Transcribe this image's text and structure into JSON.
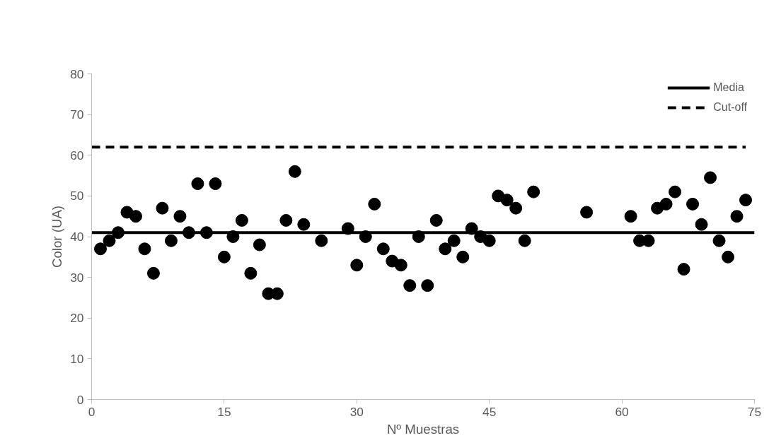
{
  "chart_data": {
    "type": "scatter",
    "xlabel": "Nº Muestras",
    "ylabel": "Color (UA)",
    "xlim": [
      0,
      75
    ],
    "xticks": [
      0,
      15,
      30,
      45,
      60,
      75
    ],
    "ylim": [
      0,
      80
    ],
    "yticks": [
      0,
      10,
      20,
      30,
      40,
      50,
      60,
      70,
      80
    ],
    "grid": false,
    "legend": "top right",
    "series": [
      {
        "marker": "circle",
        "color": "#000000",
        "x": [
          1,
          2,
          3,
          4,
          5,
          6,
          7,
          8,
          9,
          10,
          11,
          12,
          13,
          14,
          15,
          16,
          17,
          18,
          19,
          20,
          21,
          22,
          23,
          24,
          26,
          29,
          30,
          31,
          32,
          33,
          34,
          35,
          36,
          37,
          38,
          39,
          40,
          41,
          42,
          43,
          44,
          45,
          46,
          47,
          48,
          49,
          50,
          56,
          61,
          62,
          63,
          64,
          65,
          66,
          67,
          68,
          69,
          70,
          71,
          72,
          73,
          74
        ],
        "values": [
          37,
          39,
          41,
          46,
          45,
          37,
          31,
          47,
          39,
          45,
          41,
          53,
          41,
          53,
          35,
          40,
          44,
          31,
          38,
          26,
          26,
          44,
          56,
          43,
          39,
          42,
          33,
          40,
          48,
          37,
          34,
          33,
          28,
          40,
          28,
          44,
          37,
          39,
          35,
          42,
          40,
          39,
          50,
          49,
          47,
          39,
          51,
          46,
          45,
          39,
          39,
          47,
          48,
          51,
          32,
          48,
          43,
          54.5,
          39,
          35,
          45,
          49
        ]
      },
      {
        "type": "line",
        "name": "Media",
        "color": "#000000",
        "line_style": "solid",
        "x": [
          0,
          75
        ],
        "values": [
          41,
          41
        ]
      },
      {
        "type": "line",
        "name": "Cut-off",
        "color": "#000000",
        "line_style": "dashed",
        "x": [
          0,
          74
        ],
        "values": [
          62,
          62
        ]
      }
    ]
  }
}
